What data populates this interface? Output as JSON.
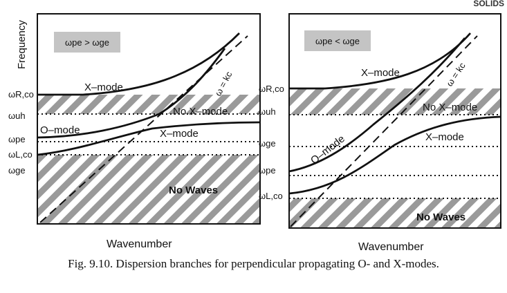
{
  "corner_text": "SOLIDS",
  "caption": "Fig. 9.10. Dispersion branches for perpendicular propagating O- and X-modes.",
  "left_panel": {
    "y_axis_label": "Frequency",
    "x_axis_label": "Wavenumber",
    "condition": "ωpe > ωge",
    "freq_labels": [
      "ωR,co",
      "ωuh",
      "ωpe",
      "ωL,co",
      "ωge"
    ],
    "curve_labels": [
      "X–mode",
      "O–mode",
      "X–mode"
    ],
    "line_label": "ω = kc",
    "region_labels": [
      "No  X–mode",
      "No Waves"
    ]
  },
  "right_panel": {
    "x_axis_label": "Wavenumber",
    "condition": "ωpe < ωge",
    "freq_labels": [
      "ωR,co",
      "ωuh",
      "ωge",
      "ωpe",
      "ωL,co"
    ],
    "curve_labels": [
      "X–mode",
      "O–mode",
      "X–mode"
    ],
    "line_label": "ω = kc",
    "region_labels": [
      "No  X–mode",
      "No  Waves"
    ]
  },
  "colors": {
    "ink": "#111111",
    "hatch": "#9a9a9a",
    "box": "#c4c4c4"
  }
}
